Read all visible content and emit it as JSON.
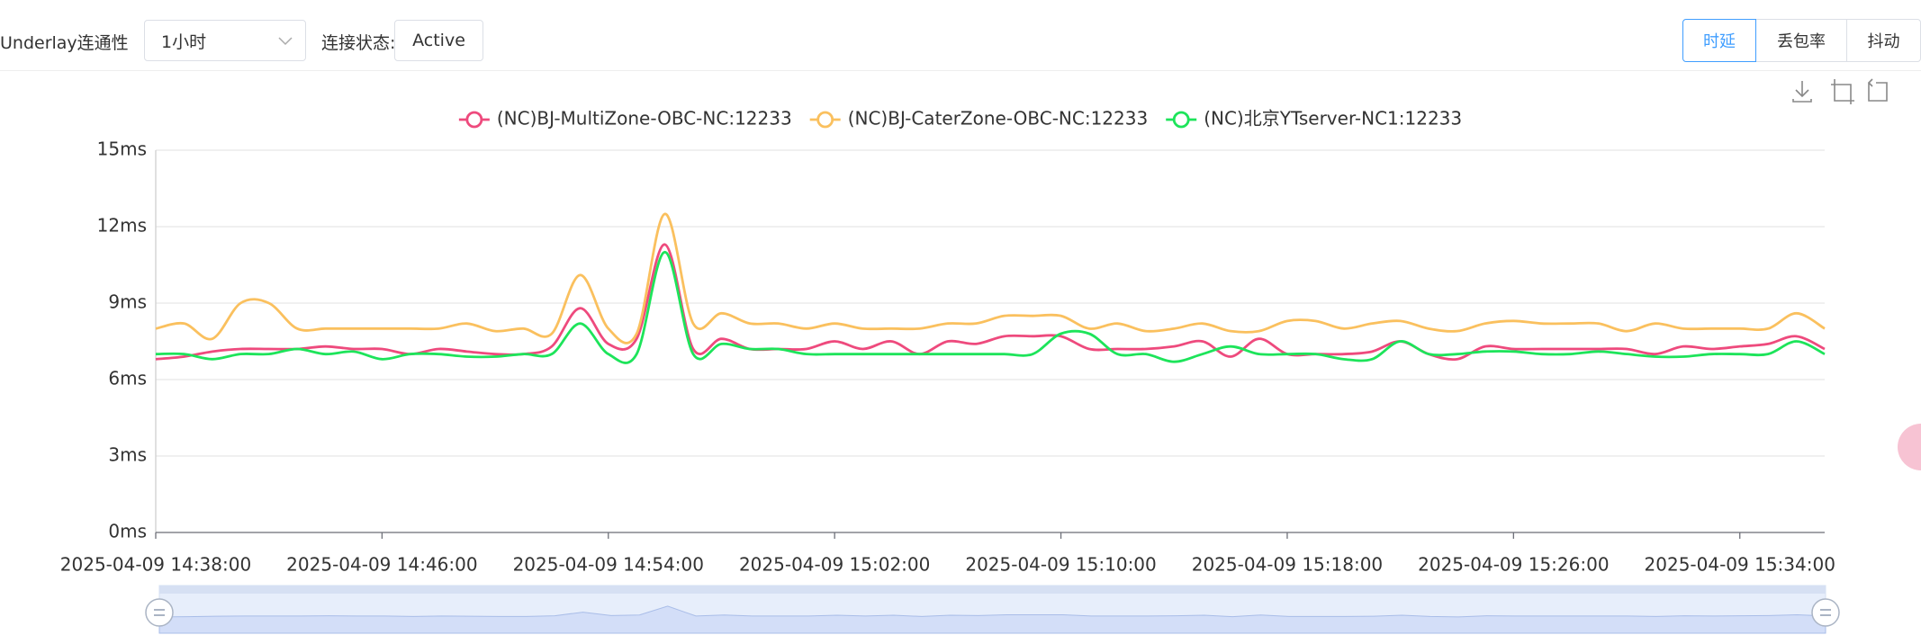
{
  "toolbar": {
    "label": "Underlay连通性",
    "range": "1小时",
    "status_label": "连接状态:",
    "status": "Active",
    "tabs": [
      "时延",
      "丢包率",
      "抖动"
    ]
  },
  "chart_data": {
    "type": "line",
    "x": [
      "2025-04-09 14:38:00",
      "2025-04-09 14:39:00",
      "2025-04-09 14:40:00",
      "2025-04-09 14:41:00",
      "2025-04-09 14:42:00",
      "2025-04-09 14:43:00",
      "2025-04-09 14:44:00",
      "2025-04-09 14:45:00",
      "2025-04-09 14:46:00",
      "2025-04-09 14:47:00",
      "2025-04-09 14:48:00",
      "2025-04-09 14:49:00",
      "2025-04-09 14:50:00",
      "2025-04-09 14:51:00",
      "2025-04-09 14:52:00",
      "2025-04-09 14:53:00",
      "2025-04-09 14:54:00",
      "2025-04-09 14:55:00",
      "2025-04-09 14:56:00",
      "2025-04-09 14:57:00",
      "2025-04-09 14:58:00",
      "2025-04-09 14:59:00",
      "2025-04-09 15:00:00",
      "2025-04-09 15:01:00",
      "2025-04-09 15:02:00",
      "2025-04-09 15:03:00",
      "2025-04-09 15:04:00",
      "2025-04-09 15:05:00",
      "2025-04-09 15:06:00",
      "2025-04-09 15:07:00",
      "2025-04-09 15:08:00",
      "2025-04-09 15:09:00",
      "2025-04-09 15:10:00",
      "2025-04-09 15:11:00",
      "2025-04-09 15:12:00",
      "2025-04-09 15:13:00",
      "2025-04-09 15:14:00",
      "2025-04-09 15:15:00",
      "2025-04-09 15:16:00",
      "2025-04-09 15:17:00",
      "2025-04-09 15:18:00",
      "2025-04-09 15:19:00",
      "2025-04-09 15:20:00",
      "2025-04-09 15:21:00",
      "2025-04-09 15:22:00",
      "2025-04-09 15:23:00",
      "2025-04-09 15:24:00",
      "2025-04-09 15:25:00",
      "2025-04-09 15:26:00",
      "2025-04-09 15:27:00",
      "2025-04-09 15:28:00",
      "2025-04-09 15:29:00",
      "2025-04-09 15:30:00",
      "2025-04-09 15:31:00",
      "2025-04-09 15:32:00",
      "2025-04-09 15:33:00",
      "2025-04-09 15:34:00",
      "2025-04-09 15:35:00",
      "2025-04-09 15:36:00",
      "2025-04-09 15:37:00"
    ],
    "xlim": [
      "2025-04-09 14:38:00",
      "2025-04-09 15:37:00"
    ],
    "xticks": [
      "2025-04-09 14:38:00",
      "2025-04-09 14:46:00",
      "2025-04-09 14:54:00",
      "2025-04-09 15:02:00",
      "2025-04-09 15:10:00",
      "2025-04-09 15:18:00",
      "2025-04-09 15:26:00",
      "2025-04-09 15:34:00"
    ],
    "ylim": [
      0,
      15
    ],
    "yticks": [
      {
        "value": 0,
        "label": "0ms"
      },
      {
        "value": 3,
        "label": "3ms"
      },
      {
        "value": 6,
        "label": "6ms"
      },
      {
        "value": 9,
        "label": "9ms"
      },
      {
        "value": 12,
        "label": "12ms"
      },
      {
        "value": 15,
        "label": "15ms"
      }
    ],
    "grid": true,
    "series": [
      {
        "name": "(NC)BJ-MultiZone-OBC-NC:12233",
        "color": "#ee4a7d",
        "values": [
          6.8,
          6.9,
          7.1,
          7.2,
          7.2,
          7.2,
          7.3,
          7.2,
          7.2,
          7.0,
          7.2,
          7.1,
          7.0,
          7.0,
          7.3,
          8.8,
          7.4,
          7.6,
          11.3,
          7.2,
          7.6,
          7.2,
          7.2,
          7.2,
          7.5,
          7.2,
          7.5,
          7.0,
          7.5,
          7.4,
          7.7,
          7.7,
          7.7,
          7.2,
          7.2,
          7.2,
          7.3,
          7.5,
          6.9,
          7.6,
          7.0,
          7.0,
          7.0,
          7.1,
          7.5,
          7.0,
          6.8,
          7.3,
          7.2,
          7.2,
          7.2,
          7.2,
          7.2,
          7.0,
          7.3,
          7.2,
          7.3,
          7.4,
          7.7,
          7.2
        ]
      },
      {
        "name": "(NC)BJ-CaterZone-OBC-NC:12233",
        "color": "#fac05e",
        "values": [
          8.0,
          8.2,
          7.6,
          9.0,
          9.0,
          8.0,
          8.0,
          8.0,
          8.0,
          8.0,
          8.0,
          8.2,
          7.9,
          8.0,
          7.8,
          10.1,
          8.0,
          7.8,
          12.5,
          8.2,
          8.6,
          8.2,
          8.2,
          8.0,
          8.2,
          8.0,
          8.0,
          8.0,
          8.2,
          8.2,
          8.5,
          8.5,
          8.5,
          8.0,
          8.2,
          7.9,
          8.0,
          8.2,
          7.9,
          7.9,
          8.3,
          8.3,
          8.0,
          8.2,
          8.3,
          8.0,
          7.9,
          8.2,
          8.3,
          8.2,
          8.2,
          8.2,
          7.9,
          8.2,
          8.0,
          8.0,
          8.0,
          8.0,
          8.6,
          8.0
        ]
      },
      {
        "name": "(NC)北京YTserver-NC1:12233",
        "color": "#1de45a",
        "values": [
          7.0,
          7.0,
          6.8,
          7.0,
          7.0,
          7.2,
          7.0,
          7.1,
          6.8,
          7.0,
          7.0,
          6.9,
          6.9,
          7.0,
          7.0,
          8.2,
          7.0,
          7.0,
          11.0,
          7.0,
          7.4,
          7.2,
          7.2,
          7.0,
          7.0,
          7.0,
          7.0,
          7.0,
          7.0,
          7.0,
          7.0,
          7.0,
          7.8,
          7.8,
          7.0,
          7.0,
          6.7,
          7.0,
          7.3,
          7.0,
          7.0,
          7.0,
          6.8,
          6.8,
          7.5,
          7.0,
          7.0,
          7.1,
          7.1,
          7.0,
          7.0,
          7.1,
          7.0,
          6.9,
          6.9,
          7.0,
          7.0,
          7.0,
          7.5,
          7.0
        ]
      }
    ]
  }
}
